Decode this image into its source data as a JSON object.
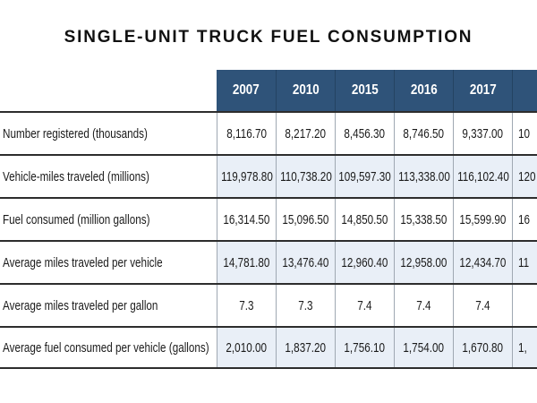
{
  "title": "SINGLE-UNIT TRUCK FUEL CONSUMPTION",
  "table": {
    "year_headers": [
      "2007",
      "2010",
      "2015",
      "2016",
      "2017",
      ""
    ],
    "rows": [
      {
        "label": "Number registered (thousands)",
        "values": [
          "8,116.70",
          "8,217.20",
          "8,456.30",
          "8,746.50",
          "9,337.00"
        ],
        "clipped": "10"
      },
      {
        "label": "Vehicle-miles traveled (millions)",
        "values": [
          "119,978.80",
          "110,738.20",
          "109,597.30",
          "113,338.00",
          "116,102.40"
        ],
        "clipped": "120"
      },
      {
        "label": "Fuel consumed (million gallons)",
        "values": [
          "16,314.50",
          "15,096.50",
          "14,850.50",
          "15,338.50",
          "15,599.90"
        ],
        "clipped": "16"
      },
      {
        "label": "Average miles traveled per vehicle",
        "values": [
          "14,781.80",
          "13,476.40",
          "12,960.40",
          "12,958.00",
          "12,434.70"
        ],
        "clipped": "11"
      },
      {
        "label": "Average miles traveled per gallon",
        "values": [
          "7.3",
          "7.3",
          "7.4",
          "7.4",
          "7.4"
        ],
        "clipped": ""
      },
      {
        "label": "Average fuel consumed per vehicle (gallons)",
        "values": [
          "2,010.00",
          "1,837.20",
          "1,756.10",
          "1,754.00",
          "1,670.80"
        ],
        "clipped": "1,"
      }
    ]
  },
  "chart_data": {
    "type": "table",
    "title": "SINGLE-UNIT TRUCK FUEL CONSUMPTION",
    "columns": [
      "2007",
      "2010",
      "2015",
      "2016",
      "2017"
    ],
    "rows": [
      {
        "metric": "Number registered (thousands)",
        "values": [
          8116.7,
          8217.2,
          8456.3,
          8746.5,
          9337.0
        ]
      },
      {
        "metric": "Vehicle-miles traveled (millions)",
        "values": [
          119978.8,
          110738.2,
          109597.3,
          113338.0,
          116102.4
        ]
      },
      {
        "metric": "Fuel consumed (million gallons)",
        "values": [
          16314.5,
          15096.5,
          14850.5,
          15338.5,
          15599.9
        ]
      },
      {
        "metric": "Average miles traveled per vehicle",
        "values": [
          14781.8,
          13476.4,
          12960.4,
          12958.0,
          12434.7
        ]
      },
      {
        "metric": "Average miles traveled per gallon",
        "values": [
          7.3,
          7.3,
          7.4,
          7.4,
          7.4
        ]
      },
      {
        "metric": "Average fuel consumed per vehicle (gallons)",
        "values": [
          2010.0,
          1837.2,
          1756.1,
          1754.0,
          1670.8
        ]
      }
    ],
    "note": "A sixth year column is clipped at the right edge of the image; only partial digits are visible."
  },
  "colors": {
    "header_bg": "#2F5379",
    "header_separator": "#244362",
    "header_text": "#FFFFFF",
    "stripe_bg": "#E9EFF7",
    "grid_line": "#9FA8B2",
    "row_line": "#2D2D2D",
    "body_text": "#1B1B1B",
    "title_text": "#111111"
  }
}
